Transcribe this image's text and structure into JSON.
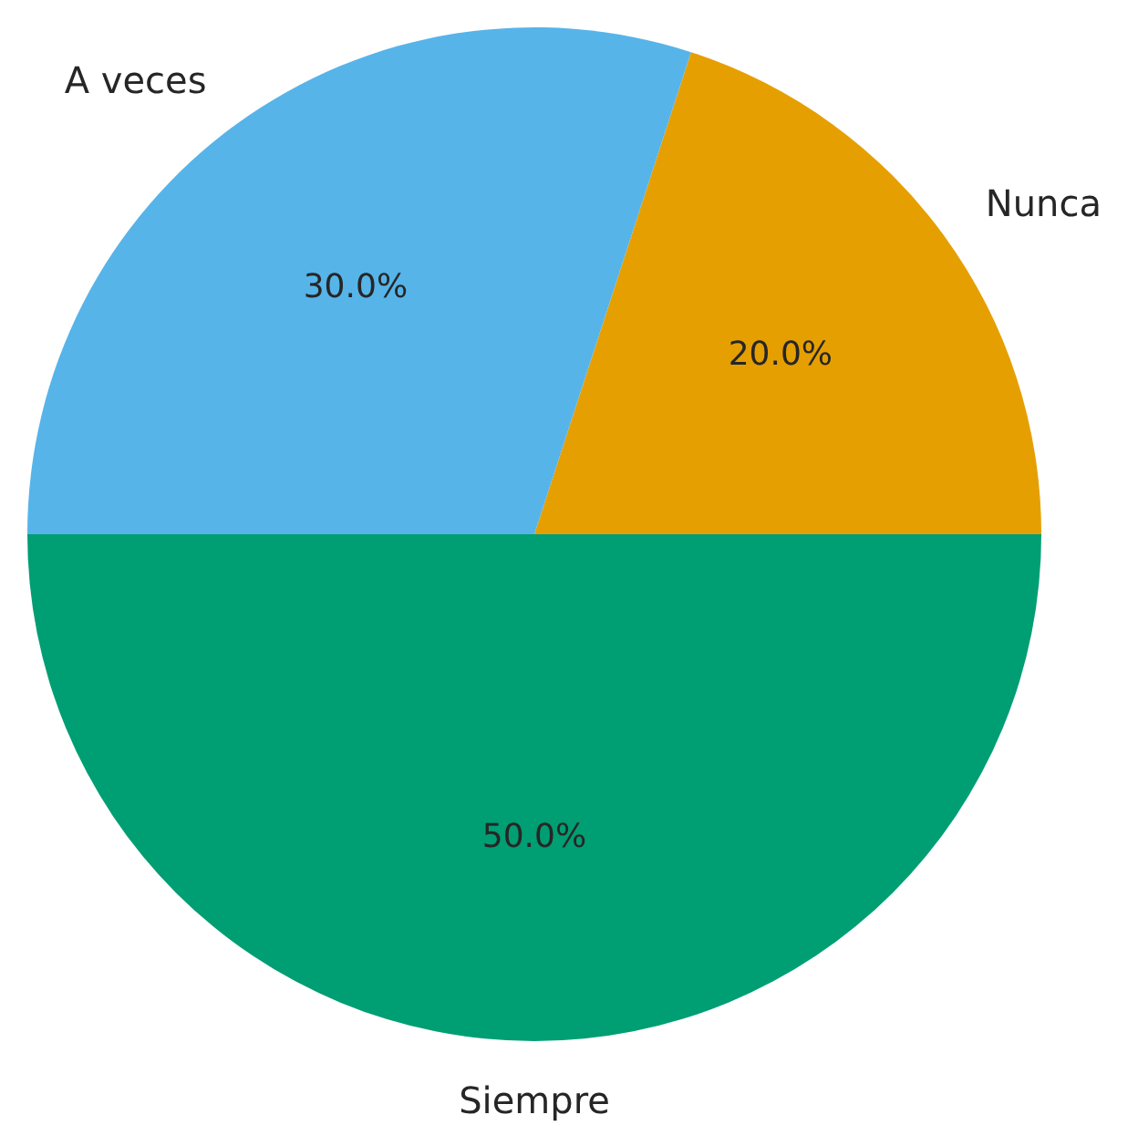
{
  "chart_data": {
    "type": "pie",
    "categories": [
      "Nunca",
      "A veces",
      "Siempre"
    ],
    "values": [
      20,
      30,
      50
    ],
    "colors": [
      "#e69f00",
      "#56b4e9",
      "#009e73"
    ],
    "value_labels": [
      "20.0%",
      "30.0%",
      "50.0%"
    ]
  }
}
